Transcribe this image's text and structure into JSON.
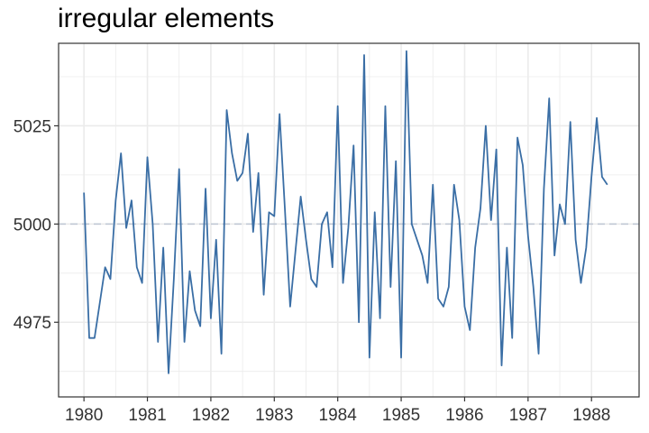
{
  "chart_data": {
    "type": "line",
    "title": "irregular elements",
    "xlabel": "",
    "ylabel": "",
    "xlim": [
      1979.6,
      1988.75
    ],
    "ylim": [
      4956,
      5046
    ],
    "x_ticks": [
      1980,
      1981,
      1982,
      1983,
      1984,
      1985,
      1986,
      1987,
      1988
    ],
    "x_tick_labels": [
      "1980",
      "1981",
      "1982",
      "1983",
      "1984",
      "1985",
      "1986",
      "1987",
      "1988"
    ],
    "y_ticks": [
      4975,
      5000,
      5025
    ],
    "y_tick_labels": [
      "4975",
      "5000",
      "5025"
    ],
    "reference_line": {
      "y": 5000,
      "style": "dashed",
      "color": "#c0c8d4"
    },
    "grid": true,
    "colors": {
      "line": "#3a6ea5",
      "grid": "#ebebeb",
      "panel_border": "#333333"
    },
    "series": [
      {
        "start": 1980,
        "step": 0.08333,
        "values": [
          5008,
          4971,
          4971,
          4980,
          4989,
          4986,
          5006,
          5018,
          4999,
          5006,
          4989,
          4985,
          5017,
          5000,
          4970,
          4994,
          4962,
          4986,
          5014,
          4970,
          4988,
          4978,
          4974,
          5009,
          4976,
          4996,
          4967,
          5029,
          5018,
          5011,
          5013,
          5023,
          4998,
          5013,
          4982,
          5003,
          5002,
          5028,
          5004,
          4979,
          4993,
          5007,
          4996,
          4986,
          4984,
          5000,
          5003,
          4989,
          5030,
          4985,
          4999,
          5020,
          4975,
          5043,
          4966,
          5003,
          4976,
          5030,
          4984,
          5016,
          4966,
          5044,
          5000,
          4996,
          4992,
          4985,
          5010,
          4981,
          4979,
          4984,
          5010,
          5001,
          4979,
          4973,
          4994,
          5004,
          5025,
          5001,
          5019,
          4964,
          4994,
          4971,
          5022,
          5015,
          4997,
          4984,
          4967,
          5009,
          5032,
          4992,
          5005,
          5000,
          5026,
          4996,
          4985,
          4994,
          5012,
          5027,
          5012,
          5010
        ]
      }
    ]
  }
}
